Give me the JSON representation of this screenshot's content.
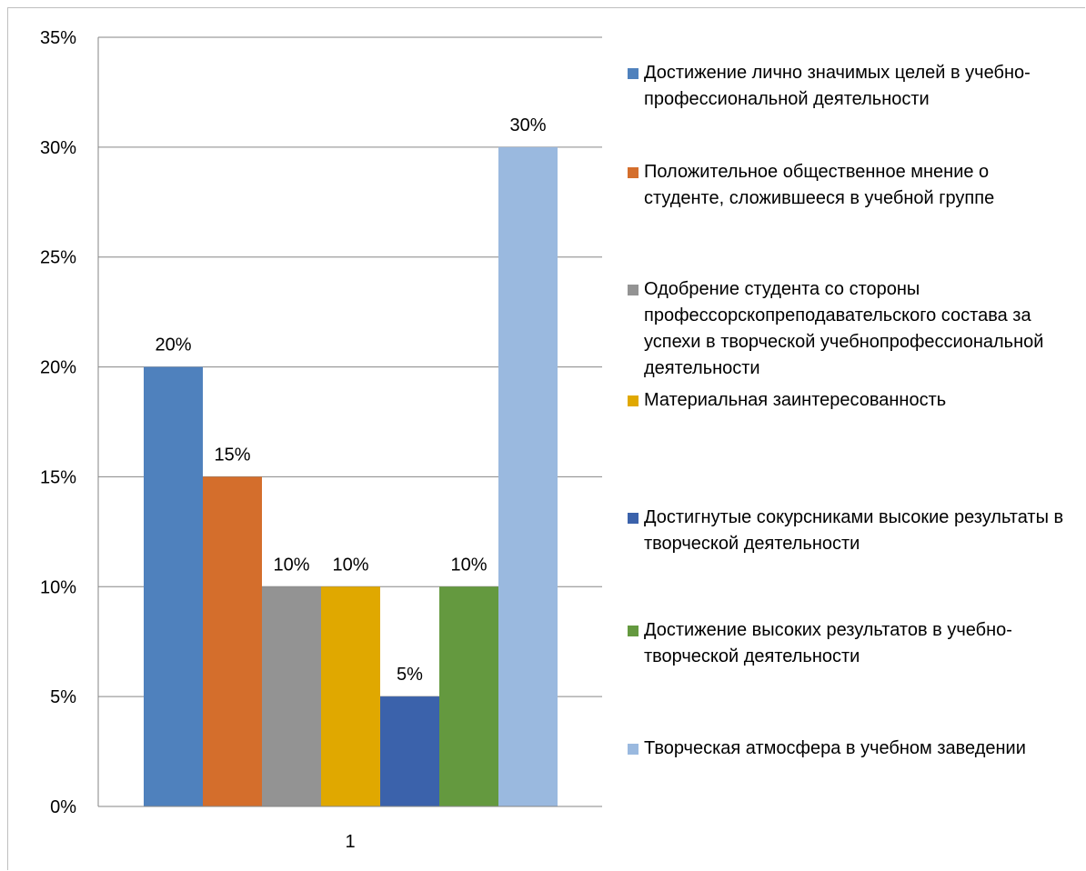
{
  "chart_data": {
    "type": "bar",
    "title": "",
    "xlabel": "",
    "ylabel": "",
    "categories": [
      "1"
    ],
    "ylim": [
      0,
      0.35
    ],
    "y_ticks": [
      0,
      0.05,
      0.1,
      0.15,
      0.2,
      0.25,
      0.3,
      0.35
    ],
    "y_tick_labels": [
      "0%",
      "5%",
      "10%",
      "15%",
      "20%",
      "25%",
      "30%",
      "35%"
    ],
    "grid": true,
    "legend_position": "right",
    "series": [
      {
        "name": "Достижение лично значимых целей в учебно-профессиональной деятельности",
        "values": [
          0.2
        ],
        "label": "20%",
        "color": "#4f81bd"
      },
      {
        "name": "Положительное общественное мнение о студенте, сложившееся в учебной группе",
        "values": [
          0.15
        ],
        "label": "15%",
        "color": "#d46e2c"
      },
      {
        "name": "Одобрение студента со стороны профессорскопреподавательского состава за успехи в творческой учебнопрофессиональной деятельности",
        "values": [
          0.1
        ],
        "label": "10%",
        "color": "#939393"
      },
      {
        "name": "Материальная заинтересованность",
        "values": [
          0.1
        ],
        "label": "10%",
        "color": "#e0a800"
      },
      {
        "name": "Достигнутые сокурсниками высокие результаты в творческой деятельности",
        "values": [
          0.05
        ],
        "label": "5%",
        "color": "#3b62ab"
      },
      {
        "name": "Достижение высоких результатов в учебно-творческой деятельности",
        "values": [
          0.1
        ],
        "label": "10%",
        "color": "#64993f"
      },
      {
        "name": "Творческая атмосфера в учебном заведении",
        "values": [
          0.3
        ],
        "label": "30%",
        "color": "#9ab9df"
      }
    ]
  }
}
